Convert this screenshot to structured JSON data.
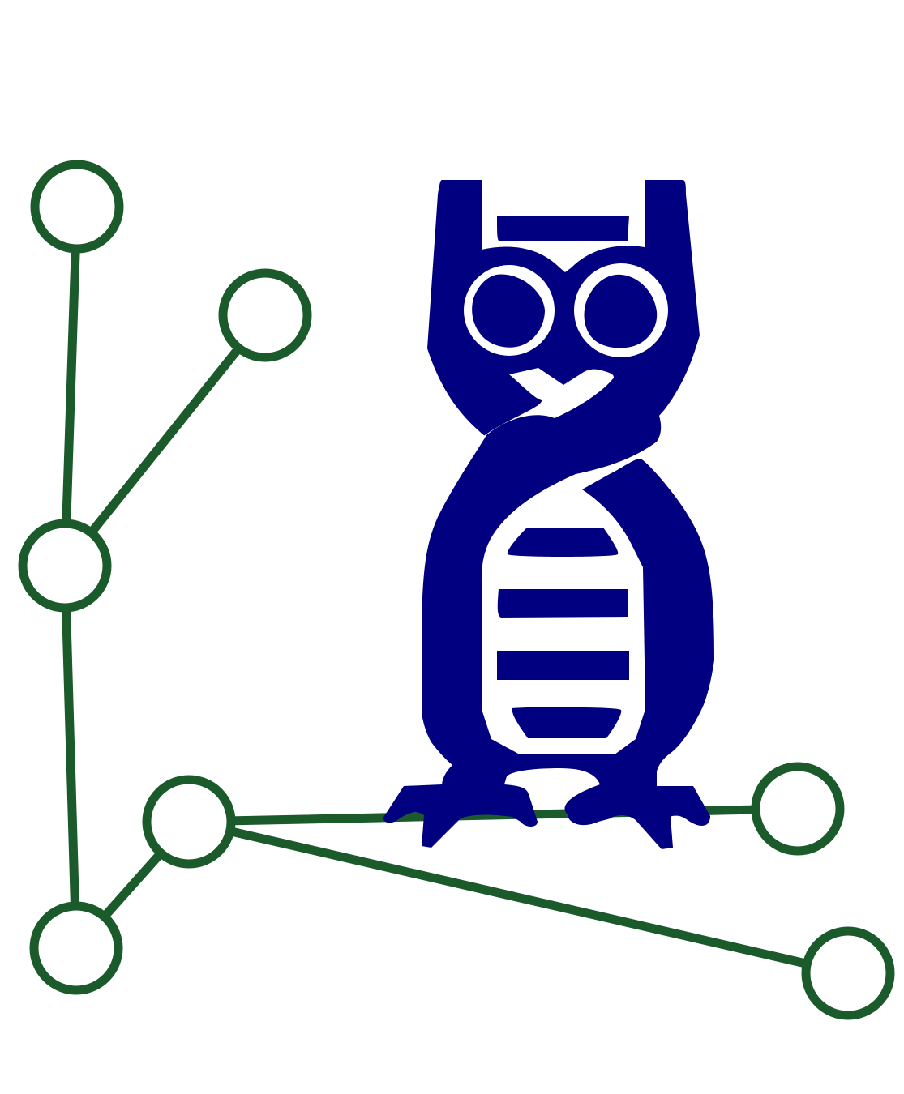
{
  "logo": {
    "description_icon": "owl-on-graph-icon",
    "colors": {
      "background": "#ffffff",
      "graph_stroke": "#1b5a2a",
      "node_fill": "#ffffff",
      "owl_body": "#000080",
      "owl_detail": "#ffffff"
    }
  }
}
